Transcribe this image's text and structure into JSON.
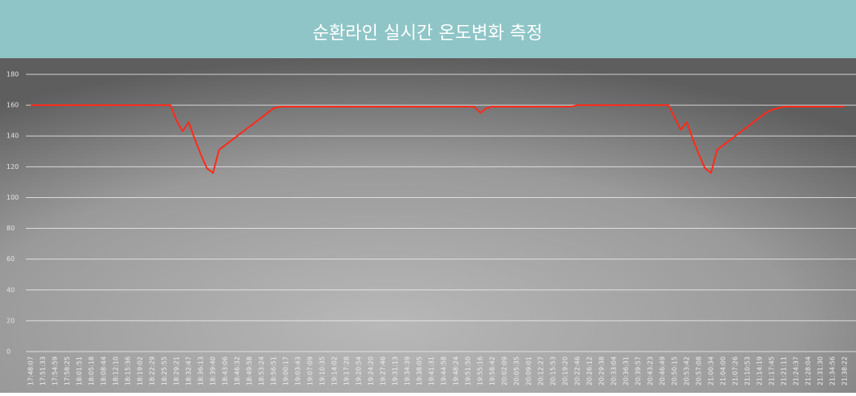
{
  "chart_data": {
    "type": "line",
    "title": "순환라인 실시간 온도변화 측정",
    "categories": [
      "17:48:07",
      null,
      "17:51:33",
      null,
      "17:54:59",
      null,
      "17:58:25",
      null,
      "18:01:51",
      null,
      "18:05:18",
      null,
      "18:08:44",
      null,
      "18:12:10",
      null,
      "18:15:36",
      null,
      "18:19:02",
      null,
      "18:22:29",
      null,
      "18:25:55",
      null,
      "18:29:21",
      null,
      "18:32:47",
      null,
      "18:36:13",
      null,
      "18:39:40",
      null,
      "18:43:06",
      null,
      "18:46:32",
      null,
      "18:49:58",
      null,
      "18:53:24",
      null,
      "18:56:51",
      null,
      "19:00:17",
      null,
      "19:03:43",
      null,
      "19:07:09",
      null,
      "19:10:35",
      null,
      "19:14:02",
      null,
      "19:17:28",
      null,
      "19:20:54",
      null,
      "19:24:20",
      null,
      "19:27:46",
      null,
      "19:31:13",
      null,
      "19:34:39",
      null,
      "19:38:05",
      null,
      "19:41:31",
      null,
      "19:44:58",
      null,
      "19:48:24",
      null,
      "19:51:50",
      null,
      "19:55:16",
      null,
      "19:58:42",
      null,
      "20:02:09",
      null,
      "20:05:35",
      null,
      "20:09:01",
      null,
      "20:12:27",
      null,
      "20:15:53",
      null,
      "20:19:20",
      null,
      "20:22:46",
      null,
      "20:26:12",
      null,
      "20:29:38",
      null,
      "20:33:04",
      null,
      "20:36:31",
      null,
      "20:39:57",
      null,
      "20:43:23",
      null,
      "20:46:49",
      null,
      "20:50:15",
      null,
      "20:53:42",
      null,
      "20:57:08",
      null,
      "21:00:34",
      null,
      "21:04:00",
      null,
      "21:07:26",
      null,
      "21:10:53",
      null,
      "21:14:19",
      null,
      "21:17:45",
      null,
      "21:21:11",
      null,
      "21:24:37",
      null,
      "21:28:04",
      null,
      "21:31:30",
      null,
      "21:34:56",
      null,
      "21:38:22"
    ],
    "values": [
      160,
      160,
      160,
      160,
      160,
      160,
      160,
      160,
      160,
      160,
      160,
      160,
      160,
      160,
      160,
      160,
      160,
      160,
      160,
      160,
      160,
      160,
      160,
      160,
      150,
      143,
      149,
      138,
      128,
      119,
      116,
      131,
      134,
      137,
      140,
      143,
      146,
      149,
      152,
      155,
      158,
      159,
      159,
      159,
      159,
      159,
      159,
      159,
      159,
      159,
      159,
      159,
      159,
      159,
      159,
      159,
      159,
      159,
      159,
      159,
      159,
      159,
      159,
      159,
      159,
      159,
      159,
      159,
      159,
      159,
      159,
      159,
      159,
      159,
      155,
      158,
      159,
      159,
      159,
      159,
      159,
      159,
      159,
      159,
      159,
      159,
      159,
      159,
      159,
      159,
      160,
      160,
      160,
      160,
      160,
      160,
      160,
      160,
      160,
      160,
      160,
      160,
      160,
      160,
      160,
      160,
      152,
      144,
      149,
      138,
      128,
      119,
      116,
      131,
      134,
      137,
      140,
      143,
      146,
      149,
      152,
      155,
      157,
      158,
      159,
      159,
      159,
      159,
      159,
      159,
      159,
      159,
      159,
      159,
      159
    ],
    "color": "#ff2a1a",
    "ylim": [
      0,
      180
    ],
    "yticks": [
      0,
      20,
      40,
      60,
      80,
      100,
      120,
      140,
      160,
      180
    ],
    "grid": true
  }
}
